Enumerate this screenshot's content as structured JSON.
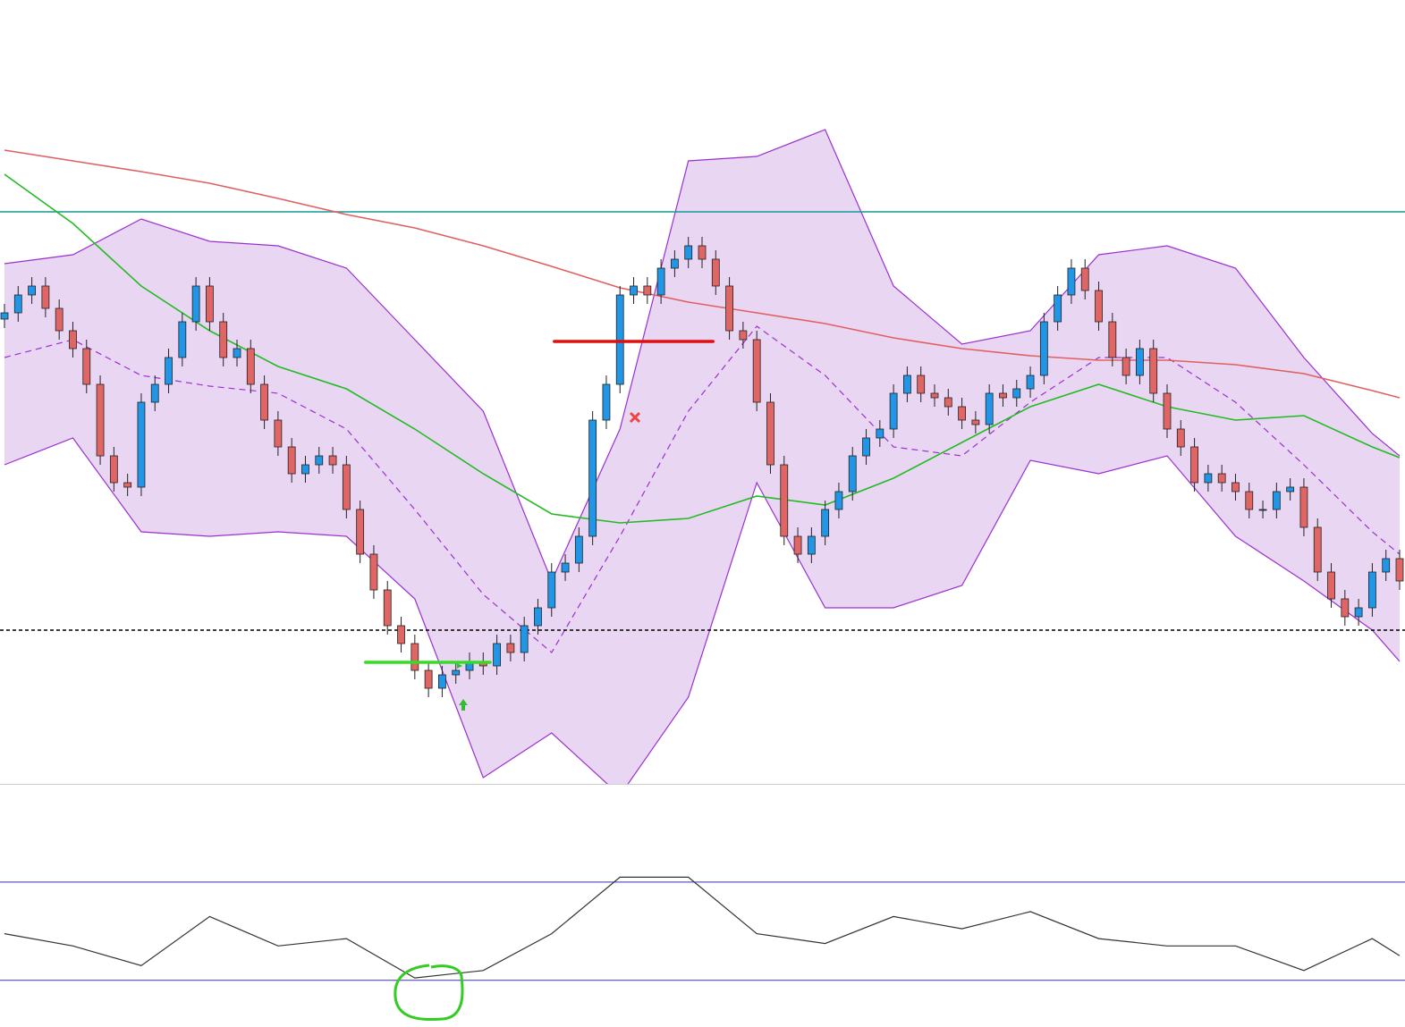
{
  "chart_data": [
    {
      "type": "candlestick",
      "xlim": [
        0,
        102
      ],
      "ylim": [
        0,
        877
      ],
      "up_color": "#2196e6",
      "down_color": "#e06666",
      "open": [
        520,
        527,
        547,
        557,
        532,
        507,
        487,
        447,
        367,
        337,
        332,
        427,
        447,
        477,
        517,
        557,
        517,
        477,
        487,
        447,
        407,
        377,
        347,
        357,
        367,
        357,
        307,
        257,
        217,
        177,
        157,
        127,
        107,
        122,
        127,
        137,
        132,
        157,
        147,
        177,
        197,
        237,
        247,
        277,
        407,
        447,
        547,
        557,
        547,
        577,
        587,
        602,
        587,
        557,
        507,
        497,
        427,
        357,
        277,
        257,
        277,
        307,
        327,
        367,
        387,
        397,
        437,
        457,
        437,
        432,
        422,
        407,
        402,
        437,
        432,
        442,
        457,
        517,
        547,
        577,
        552,
        517,
        477,
        457,
        487,
        437,
        397,
        377,
        337,
        347,
        337,
        327,
        307,
        307,
        327,
        332,
        287,
        237,
        207,
        187,
        197,
        237,
        252
      ],
      "high": [
        537,
        557,
        567,
        567,
        542,
        517,
        497,
        457,
        377,
        347,
        437,
        457,
        487,
        527,
        567,
        567,
        527,
        497,
        497,
        457,
        417,
        387,
        367,
        377,
        377,
        367,
        317,
        267,
        227,
        187,
        167,
        137,
        132,
        137,
        147,
        147,
        167,
        167,
        187,
        207,
        247,
        257,
        287,
        417,
        457,
        557,
        567,
        567,
        587,
        597,
        612,
        612,
        597,
        567,
        517,
        507,
        437,
        367,
        287,
        287,
        317,
        337,
        377,
        397,
        407,
        447,
        467,
        467,
        447,
        442,
        432,
        417,
        447,
        447,
        452,
        467,
        527,
        557,
        587,
        587,
        562,
        527,
        487,
        497,
        497,
        447,
        407,
        387,
        357,
        357,
        347,
        337,
        317,
        337,
        342,
        342,
        297,
        247,
        217,
        207,
        247,
        262,
        262
      ],
      "low": [
        510,
        517,
        537,
        522,
        497,
        477,
        437,
        357,
        327,
        322,
        322,
        417,
        437,
        467,
        507,
        507,
        467,
        467,
        437,
        397,
        367,
        337,
        337,
        347,
        347,
        297,
        247,
        207,
        167,
        147,
        117,
        97,
        97,
        112,
        117,
        122,
        122,
        137,
        137,
        167,
        187,
        227,
        237,
        267,
        397,
        437,
        537,
        537,
        537,
        567,
        577,
        577,
        547,
        497,
        487,
        417,
        347,
        267,
        247,
        247,
        267,
        297,
        317,
        357,
        377,
        387,
        427,
        427,
        422,
        412,
        397,
        392,
        392,
        422,
        422,
        432,
        447,
        507,
        537,
        542,
        507,
        467,
        447,
        447,
        427,
        387,
        367,
        327,
        327,
        327,
        317,
        297,
        297,
        297,
        317,
        277,
        227,
        197,
        177,
        177,
        187,
        227,
        217
      ],
      "close": [
        527,
        547,
        557,
        532,
        507,
        487,
        447,
        367,
        337,
        332,
        427,
        447,
        477,
        517,
        557,
        517,
        477,
        487,
        447,
        407,
        377,
        347,
        357,
        367,
        357,
        307,
        257,
        217,
        177,
        157,
        127,
        107,
        122,
        127,
        137,
        132,
        157,
        147,
        177,
        197,
        237,
        247,
        277,
        407,
        447,
        547,
        557,
        547,
        577,
        587,
        602,
        587,
        557,
        507,
        497,
        427,
        357,
        277,
        257,
        277,
        307,
        327,
        367,
        387,
        397,
        437,
        457,
        437,
        432,
        422,
        407,
        402,
        437,
        432,
        442,
        457,
        517,
        547,
        577,
        552,
        517,
        477,
        457,
        487,
        437,
        397,
        377,
        337,
        347,
        337,
        327,
        307,
        307,
        327,
        332,
        287,
        237,
        207,
        187,
        197,
        237,
        252,
        227
      ],
      "overlay_x": [
        0,
        5,
        10,
        15,
        20,
        25,
        30,
        35,
        40,
        45,
        50,
        55,
        60,
        65,
        70,
        75,
        80,
        85,
        90,
        95,
        100,
        102
      ],
      "bands": {
        "fill": "#e9d6f3",
        "color": "#9b30d0",
        "upper": [
          582,
          592,
          632,
          607,
          602,
          577,
          497,
          417,
          227,
          397,
          697,
          702,
          732,
          557,
          492,
          507,
          592,
          602,
          577,
          477,
          392,
          367
        ],
        "middle": [
          477,
          497,
          457,
          445,
          437,
          397,
          307,
          212,
          147,
          277,
          417,
          512,
          457,
          377,
          367,
          427,
          477,
          477,
          427,
          357,
          282,
          257
        ],
        "lower": [
          357,
          387,
          282,
          277,
          282,
          277,
          207,
          7,
          57,
          -13,
          97,
          337,
          197,
          197,
          222,
          362,
          347,
          367,
          277,
          227,
          172,
          137
        ]
      },
      "series": [
        {
          "color": "#e06060",
          "values": [
            709,
            697,
            685,
            672,
            655,
            637,
            622,
            602,
            579,
            555,
            539,
            527,
            515,
            499,
            487,
            479,
            474,
            474,
            469,
            459,
            440,
            432
          ]
        },
        {
          "color": "#22bb22",
          "values": [
            682,
            627,
            557,
            507,
            467,
            442,
            397,
            347,
            302,
            292,
            297,
            322,
            312,
            342,
            382,
            422,
            447,
            422,
            407,
            412,
            377,
            365
          ]
        }
      ],
      "hlines": [
        {
          "value": 640,
          "color": "#139a9a",
          "dashed": false
        },
        {
          "value": 172,
          "color": "#000000",
          "dashed": true
        }
      ],
      "drawings": [
        {
          "value": 495,
          "x": [
            40.2,
            51.8
          ],
          "color": "#dd1111"
        },
        {
          "value": 136,
          "x": [
            26.4,
            35.5
          ],
          "color": "#33dd22"
        }
      ]
    },
    {
      "type": "line",
      "xlim": [
        0,
        102
      ],
      "ylim": [
        11,
        110
      ],
      "levels": [
        30,
        70
      ],
      "level_color": "#3333aa",
      "color": "#333333",
      "x": [
        0,
        5,
        10,
        15,
        20,
        25,
        30,
        35,
        40,
        45,
        50,
        55,
        60,
        65,
        70,
        75,
        80,
        85,
        90,
        95,
        100,
        102
      ],
      "values": [
        49,
        44,
        36,
        56,
        44,
        47,
        31,
        34,
        49,
        72,
        72,
        49,
        45,
        56,
        51,
        58,
        47,
        44,
        44,
        34,
        47,
        40
      ]
    }
  ]
}
